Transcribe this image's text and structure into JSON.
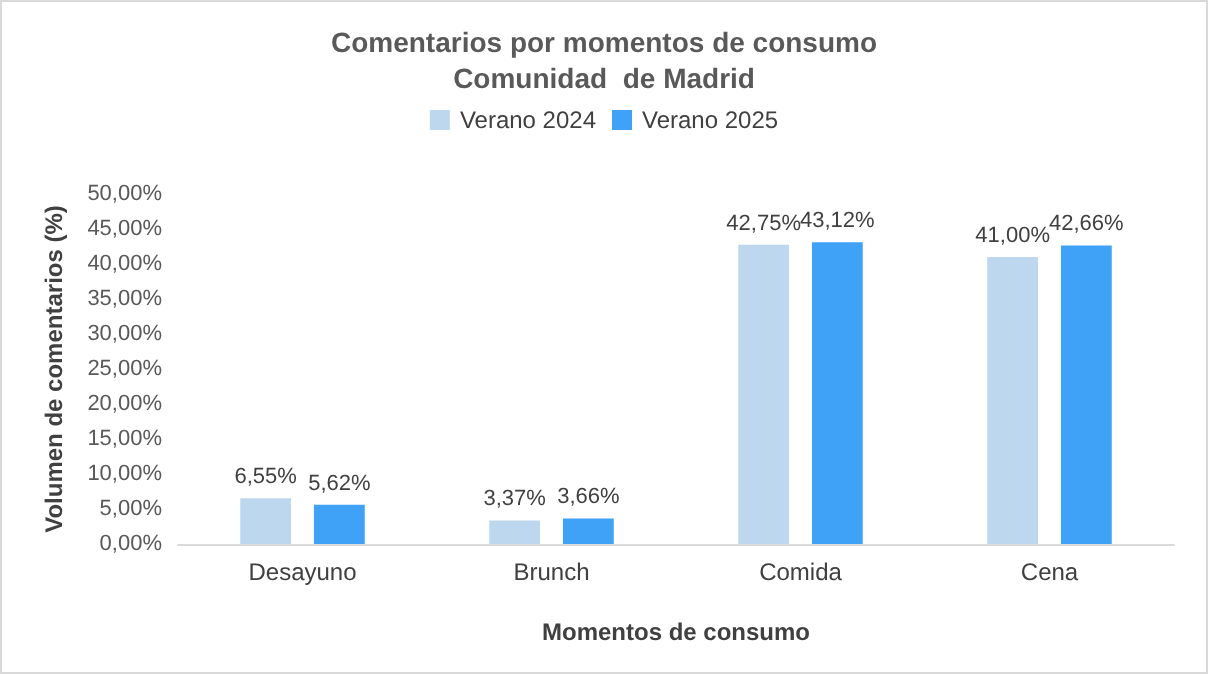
{
  "chart_data": {
    "type": "bar",
    "title": "Comentarios por momentos de consumo",
    "subtitle": "Comunidad  de Madrid",
    "xlabel": "Momentos de consumo",
    "ylabel": "Volumen de comentarios (%)",
    "categories": [
      "Desayuno",
      "Brunch",
      "Comida",
      "Cena"
    ],
    "series": [
      {
        "name": "Verano 2024",
        "color": "#bdd7ee",
        "values": [
          6.55,
          3.37,
          42.75,
          41.0
        ],
        "value_labels": [
          "6,55%",
          "3,37%",
          "42,75%",
          "41,00%"
        ]
      },
      {
        "name": "Verano 2025",
        "color": "#3fa2f7",
        "values": [
          5.62,
          3.66,
          43.12,
          42.66
        ],
        "value_labels": [
          "5,62%",
          "3,66%",
          "43,12%",
          "42,66%"
        ]
      }
    ],
    "ylim": [
      0,
      50
    ],
    "yticks": [
      {
        "value": 0,
        "label": "0,00%"
      },
      {
        "value": 5,
        "label": "5,00%"
      },
      {
        "value": 10,
        "label": "10,00%"
      },
      {
        "value": 15,
        "label": "15,00%"
      },
      {
        "value": 20,
        "label": "20,00%"
      },
      {
        "value": 25,
        "label": "25,00%"
      },
      {
        "value": 30,
        "label": "30,00%"
      },
      {
        "value": 35,
        "label": "35,00%"
      },
      {
        "value": 40,
        "label": "40,00%"
      },
      {
        "value": 45,
        "label": "45,00%"
      },
      {
        "value": 50,
        "label": "50,00%"
      }
    ],
    "grid": false,
    "legend": "top"
  }
}
